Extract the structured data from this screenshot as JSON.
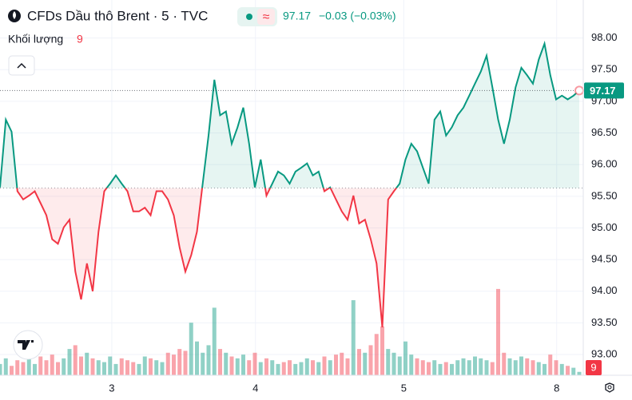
{
  "header": {
    "symbol": "CFDs Dầu thô Brent · 5 · TVC",
    "change": "−0.03 (−0.03%)",
    "volume_label": "Khối lượng"
  },
  "chart_data": {
    "type": "baseline",
    "price": 97.17,
    "baseline": 95.63,
    "up_color": "#089981",
    "down_color": "#f23645",
    "x": [
      0,
      1,
      2,
      3,
      4,
      5,
      6,
      7,
      8,
      9,
      10,
      11,
      12,
      13,
      14,
      15,
      16,
      17,
      18,
      19,
      20,
      21,
      22,
      23,
      24,
      25,
      26,
      27,
      28,
      29,
      30,
      31,
      32,
      33,
      34,
      35,
      36,
      37,
      38,
      39,
      40,
      41,
      42,
      43,
      44,
      45,
      46,
      47,
      48,
      49,
      50,
      51,
      52,
      53,
      54,
      55,
      56,
      57,
      58,
      59,
      60,
      61,
      62,
      63,
      64,
      65,
      66,
      67,
      68,
      69,
      70,
      71,
      72,
      73,
      74,
      75,
      76,
      77,
      78,
      79,
      80,
      81,
      82,
      83,
      84,
      85,
      86,
      87,
      88,
      89,
      90,
      91,
      92,
      93,
      94,
      95,
      96,
      97,
      98,
      99,
      100
    ],
    "values": [
      95.64,
      96.71,
      96.52,
      95.58,
      95.45,
      95.51,
      95.58,
      95.39,
      95.2,
      94.82,
      94.75,
      95.01,
      95.13,
      94.31,
      93.87,
      94.44,
      94.0,
      94.94,
      95.58,
      95.7,
      95.83,
      95.7,
      95.58,
      95.26,
      95.26,
      95.32,
      95.2,
      95.58,
      95.58,
      95.45,
      95.2,
      94.69,
      94.31,
      94.57,
      94.94,
      95.7,
      96.46,
      97.34,
      96.78,
      96.84,
      96.33,
      96.59,
      96.9,
      96.33,
      95.64,
      96.08,
      95.51,
      95.7,
      95.89,
      95.83,
      95.7,
      95.89,
      95.95,
      96.02,
      95.83,
      95.89,
      95.58,
      95.64,
      95.45,
      95.26,
      95.13,
      95.51,
      95.07,
      95.13,
      94.82,
      94.44,
      93.43,
      95.45,
      95.58,
      95.7,
      96.08,
      96.33,
      96.21,
      95.95,
      95.7,
      96.71,
      96.84,
      96.46,
      96.59,
      96.78,
      96.9,
      97.09,
      97.28,
      97.47,
      97.72,
      97.22,
      96.71,
      96.33,
      96.71,
      97.22,
      97.53,
      97.41,
      97.28,
      97.66,
      97.91,
      97.41,
      97.03,
      97.09,
      97.03,
      97.09,
      97.17
    ],
    "volume": [
      30,
      45,
      25,
      40,
      35,
      60,
      30,
      50,
      40,
      55,
      35,
      45,
      70,
      80,
      50,
      60,
      45,
      40,
      35,
      50,
      30,
      45,
      40,
      35,
      30,
      50,
      45,
      40,
      35,
      60,
      55,
      70,
      65,
      140,
      90,
      60,
      80,
      180,
      70,
      60,
      50,
      45,
      55,
      40,
      60,
      35,
      45,
      40,
      30,
      35,
      40,
      30,
      35,
      45,
      40,
      35,
      50,
      40,
      55,
      60,
      45,
      200,
      70,
      60,
      80,
      110,
      130,
      70,
      60,
      50,
      90,
      55,
      45,
      40,
      35,
      40,
      30,
      35,
      30,
      40,
      45,
      40,
      50,
      45,
      40,
      35,
      230,
      60,
      45,
      40,
      50,
      45,
      40,
      35,
      30,
      55,
      40,
      30,
      25,
      20,
      9
    ],
    "volume_lim": [
      0,
      500
    ],
    "xlim": [
      0,
      100
    ],
    "xticks": [
      {
        "value": 19.3,
        "label": "3"
      },
      {
        "value": 44.1,
        "label": "4"
      },
      {
        "value": 69.7,
        "label": "5"
      },
      {
        "value": 96.1,
        "label": "8"
      }
    ],
    "ylim": [
      92.95,
      98.55
    ],
    "yticks": [
      {
        "value": 98,
        "label": "98.00"
      },
      {
        "value": 97.5,
        "label": "97.50"
      },
      {
        "value": 97,
        "label": "97.00"
      },
      {
        "value": 96.5,
        "label": "96.50"
      },
      {
        "value": 96,
        "label": "96.00"
      },
      {
        "value": 95.5,
        "label": "95.50"
      },
      {
        "value": 95,
        "label": "95.00"
      },
      {
        "value": 94.5,
        "label": "94.50"
      },
      {
        "value": 94,
        "label": "94.00"
      },
      {
        "value": 93.5,
        "label": "93.50"
      },
      {
        "value": 93,
        "label": "93.00"
      }
    ],
    "grid": true
  }
}
